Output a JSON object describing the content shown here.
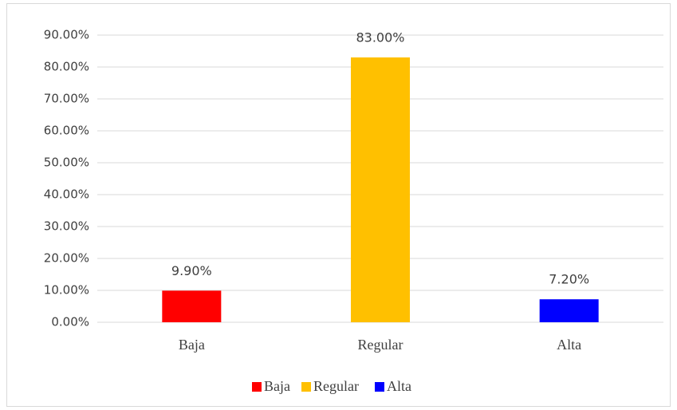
{
  "chart_data": {
    "type": "bar",
    "categories": [
      "Baja",
      "Regular",
      "Alta"
    ],
    "values": [
      9.9,
      83,
      7.2
    ],
    "value_labels": [
      "9.90%",
      "83.00%",
      "7.20%"
    ],
    "colors": [
      "#ff0000",
      "#ffc000",
      "#0000ff"
    ],
    "ylim": [
      0,
      90
    ],
    "yticks": [
      {
        "value": 0,
        "label": "0.00%"
      },
      {
        "value": 10,
        "label": "10.00%"
      },
      {
        "value": 20,
        "label": "20.00%"
      },
      {
        "value": 30,
        "label": "30.00%"
      },
      {
        "value": 40,
        "label": "40.00%"
      },
      {
        "value": 50,
        "label": "50.00%"
      },
      {
        "value": 60,
        "label": "60.00%"
      },
      {
        "value": 70,
        "label": "70.00%"
      },
      {
        "value": 80,
        "label": "80.00%"
      },
      {
        "value": 90,
        "label": "90.00%"
      }
    ],
    "grid": true,
    "legend": "bottom"
  }
}
